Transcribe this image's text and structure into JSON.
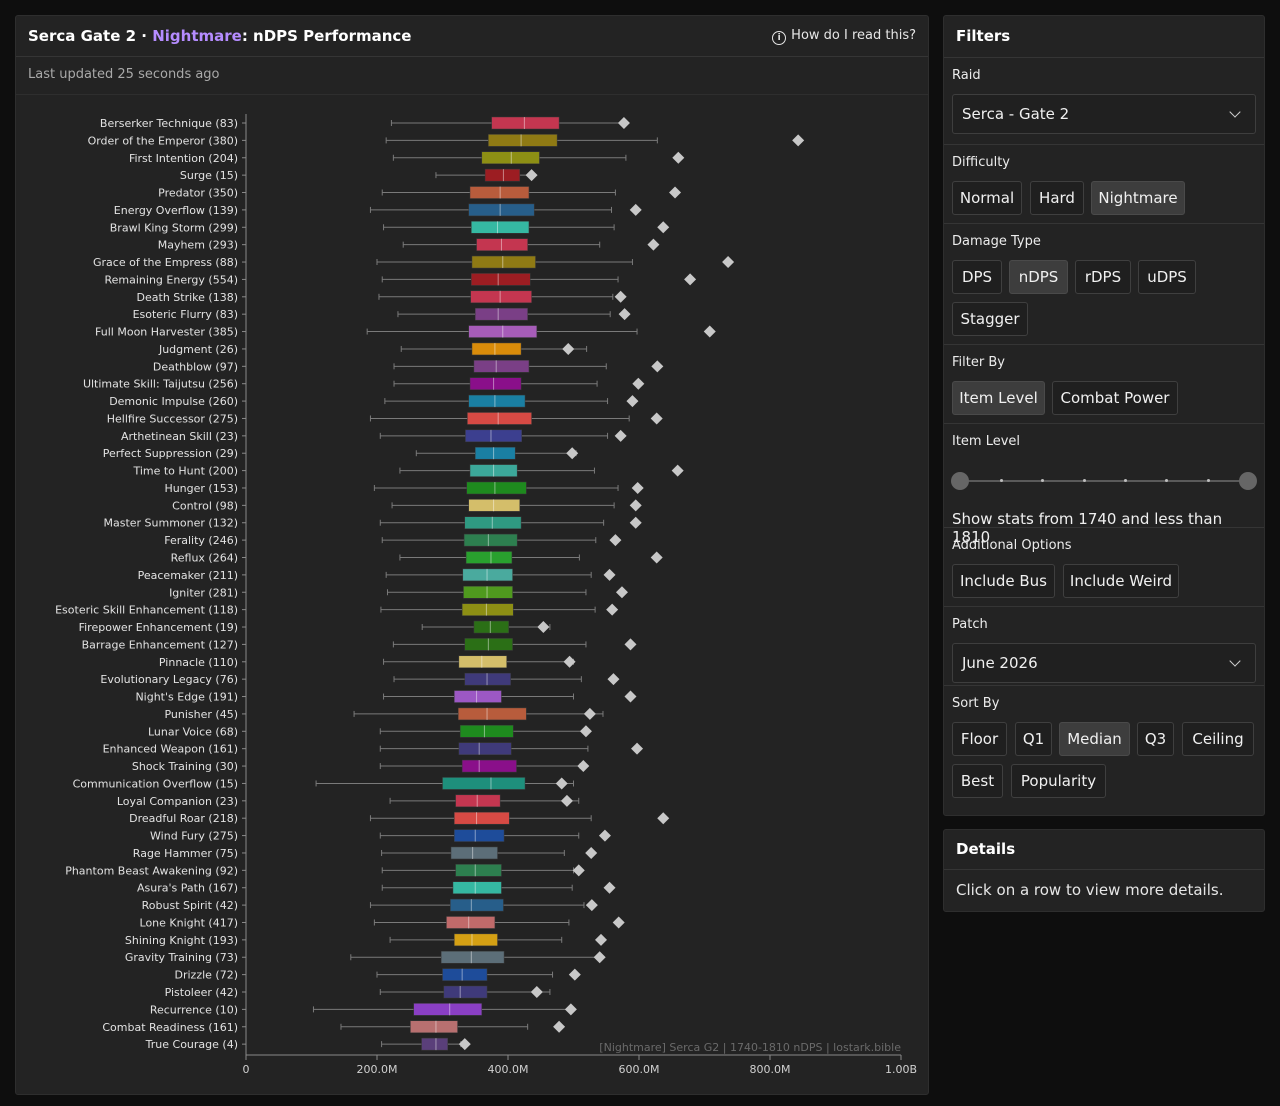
{
  "header": {
    "title_prefix": "Serca Gate 2 · ",
    "title_difficulty": "Nightmare",
    "title_suffix": ": nDPS Performance",
    "help_link": "How do I read this?",
    "updated": "Last updated 25 seconds ago"
  },
  "chart_data": {
    "type": "boxplot",
    "watermark": "[Nightmare] Serca G2 | 1740-1810 nDPS | lostark.bible",
    "x_ticks": [
      "0",
      "200.0M",
      "400.0M",
      "600.0M",
      "800.0M",
      "1.00B"
    ],
    "xlim": [
      0,
      1000
    ],
    "units": "M",
    "grid": false,
    "rows": [
      {
        "label": "Berserker Technique (83)",
        "color": "#c43650",
        "min": 222,
        "q1": 375,
        "median": 425,
        "q3": 478,
        "max": 580,
        "best": 577
      },
      {
        "label": "Order of the Emperor (380)",
        "color": "#8f7a14",
        "min": 214,
        "q1": 370,
        "median": 420,
        "q3": 475,
        "max": 628,
        "best": 843
      },
      {
        "label": "First Intention (204)",
        "color": "#8d8f14",
        "min": 225,
        "q1": 360,
        "median": 405,
        "q3": 448,
        "max": 580,
        "best": 660
      },
      {
        "label": "Surge (15)",
        "color": "#9c1d22",
        "min": 290,
        "q1": 365,
        "median": 393,
        "q3": 418,
        "max": 436,
        "best": 436
      },
      {
        "label": "Predator (350)",
        "color": "#b85c3c",
        "min": 208,
        "q1": 342,
        "median": 388,
        "q3": 432,
        "max": 564,
        "best": 655
      },
      {
        "label": "Energy Overflow (139)",
        "color": "#275e8a",
        "min": 190,
        "q1": 340,
        "median": 388,
        "q3": 440,
        "max": 558,
        "best": 595
      },
      {
        "label": "Brawl King Storm (299)",
        "color": "#35b8a2",
        "min": 210,
        "q1": 344,
        "median": 384,
        "q3": 432,
        "max": 562,
        "best": 637
      },
      {
        "label": "Mayhem (293)",
        "color": "#c43650",
        "min": 240,
        "q1": 352,
        "median": 390,
        "q3": 430,
        "max": 540,
        "best": 622
      },
      {
        "label": "Grace of the Empress (88)",
        "color": "#8f7a14",
        "min": 200,
        "q1": 345,
        "median": 392,
        "q3": 442,
        "max": 590,
        "best": 736
      },
      {
        "label": "Remaining Energy (554)",
        "color": "#9c1d22",
        "min": 208,
        "q1": 344,
        "median": 385,
        "q3": 434,
        "max": 568,
        "best": 678
      },
      {
        "label": "Death Strike (138)",
        "color": "#c43650",
        "min": 203,
        "q1": 343,
        "median": 388,
        "q3": 436,
        "max": 560,
        "best": 572
      },
      {
        "label": "Esoteric Flurry (83)",
        "color": "#7a3f86",
        "min": 232,
        "q1": 350,
        "median": 385,
        "q3": 430,
        "max": 556,
        "best": 578
      },
      {
        "label": "Full Moon Harvester (385)",
        "color": "#a65cb8",
        "min": 185,
        "q1": 340,
        "median": 392,
        "q3": 444,
        "max": 597,
        "best": 708
      },
      {
        "label": "Judgment (26)",
        "color": "#d98c0a",
        "min": 237,
        "q1": 345,
        "median": 380,
        "q3": 420,
        "max": 520,
        "best": 492
      },
      {
        "label": "Deathblow (97)",
        "color": "#7a3f86",
        "min": 226,
        "q1": 348,
        "median": 382,
        "q3": 432,
        "max": 550,
        "best": 628
      },
      {
        "label": "Ultimate Skill: Taijutsu (256)",
        "color": "#8a0f8a",
        "min": 226,
        "q1": 342,
        "median": 378,
        "q3": 420,
        "max": 536,
        "best": 599
      },
      {
        "label": "Demonic Impulse (260)",
        "color": "#1a7fa3",
        "min": 212,
        "q1": 340,
        "median": 380,
        "q3": 426,
        "max": 552,
        "best": 590
      },
      {
        "label": "Hellfire Successor (275)",
        "color": "#d64a44",
        "min": 190,
        "q1": 338,
        "median": 385,
        "q3": 436,
        "max": 585,
        "best": 627
      },
      {
        "label": "Arthetinean Skill (23)",
        "color": "#3c3f8f",
        "min": 205,
        "q1": 335,
        "median": 374,
        "q3": 421,
        "max": 552,
        "best": 572
      },
      {
        "label": "Perfect Suppression (29)",
        "color": "#1a7fa3",
        "min": 260,
        "q1": 350,
        "median": 378,
        "q3": 411,
        "max": 504,
        "best": 498
      },
      {
        "label": "Time to Hunt (200)",
        "color": "#3ca89a",
        "min": 235,
        "q1": 342,
        "median": 378,
        "q3": 414,
        "max": 532,
        "best": 659
      },
      {
        "label": "Hunger (153)",
        "color": "#1e8a1e",
        "min": 196,
        "q1": 337,
        "median": 380,
        "q3": 428,
        "max": 568,
        "best": 598
      },
      {
        "label": "Control (98)",
        "color": "#d4be6a",
        "min": 223,
        "q1": 340,
        "median": 378,
        "q3": 418,
        "max": 562,
        "best": 595
      },
      {
        "label": "Master Summoner (132)",
        "color": "#2f9a82",
        "min": 205,
        "q1": 334,
        "median": 376,
        "q3": 420,
        "max": 546,
        "best": 595
      },
      {
        "label": "Ferality (246)",
        "color": "#2d7f4f",
        "min": 208,
        "q1": 333,
        "median": 370,
        "q3": 414,
        "max": 534,
        "best": 564
      },
      {
        "label": "Reflux (264)",
        "color": "#29a02e",
        "min": 235,
        "q1": 336,
        "median": 374,
        "q3": 406,
        "max": 509,
        "best": 627
      },
      {
        "label": "Peacemaker (211)",
        "color": "#4aaa9e",
        "min": 214,
        "q1": 331,
        "median": 368,
        "q3": 407,
        "max": 527,
        "best": 555
      },
      {
        "label": "Igniter (281)",
        "color": "#4f9a1e",
        "min": 216,
        "q1": 332,
        "median": 368,
        "q3": 407,
        "max": 519,
        "best": 574
      },
      {
        "label": "Esoteric Skill Enhancement (118)",
        "color": "#8d8f14",
        "min": 206,
        "q1": 330,
        "median": 367,
        "q3": 408,
        "max": 533,
        "best": 559
      },
      {
        "label": "Firepower Enhancement (19)",
        "color": "#2b6f16",
        "min": 269,
        "q1": 348,
        "median": 373,
        "q3": 401,
        "max": 464,
        "best": 454
      },
      {
        "label": "Barrage Enhancement (127)",
        "color": "#2b6f16",
        "min": 225,
        "q1": 334,
        "median": 370,
        "q3": 407,
        "max": 519,
        "best": 587
      },
      {
        "label": "Pinnacle (110)",
        "color": "#d4be6a",
        "min": 210,
        "q1": 325,
        "median": 360,
        "q3": 398,
        "max": 500,
        "best": 494
      },
      {
        "label": "Evolutionary Legacy (76)",
        "color": "#3f3a7a",
        "min": 226,
        "q1": 334,
        "median": 368,
        "q3": 404,
        "max": 512,
        "best": 561
      },
      {
        "label": "Night's Edge (191)",
        "color": "#9c58c4",
        "min": 210,
        "q1": 318,
        "median": 352,
        "q3": 390,
        "max": 500,
        "best": 587
      },
      {
        "label": "Punisher (45)",
        "color": "#b85c3c",
        "min": 165,
        "q1": 324,
        "median": 368,
        "q3": 428,
        "max": 545,
        "best": 525
      },
      {
        "label": "Lunar Voice (68)",
        "color": "#1e8a1e",
        "min": 205,
        "q1": 327,
        "median": 364,
        "q3": 408,
        "max": 522,
        "best": 519
      },
      {
        "label": "Enhanced Weapon (161)",
        "color": "#3f3a7a",
        "min": 205,
        "q1": 325,
        "median": 356,
        "q3": 405,
        "max": 522,
        "best": 597
      },
      {
        "label": "Shock Training (30)",
        "color": "#8a0f8a",
        "min": 205,
        "q1": 330,
        "median": 356,
        "q3": 413,
        "max": 510,
        "best": 515
      },
      {
        "label": "Communication Overflow (15)",
        "color": "#1e8f7c",
        "min": 107,
        "q1": 300,
        "median": 374,
        "q3": 426,
        "max": 500,
        "best": 482
      },
      {
        "label": "Loyal Companion (23)",
        "color": "#c43650",
        "min": 220,
        "q1": 320,
        "median": 353,
        "q3": 388,
        "max": 508,
        "best": 490
      },
      {
        "label": "Dreadful Roar (218)",
        "color": "#d64a44",
        "min": 190,
        "q1": 318,
        "median": 352,
        "q3": 402,
        "max": 527,
        "best": 637
      },
      {
        "label": "Wind Fury (275)",
        "color": "#1e4c9a",
        "min": 205,
        "q1": 318,
        "median": 350,
        "q3": 394,
        "max": 508,
        "best": 548
      },
      {
        "label": "Rage Hammer (75)",
        "color": "#5c6e78",
        "min": 207,
        "q1": 313,
        "median": 346,
        "q3": 384,
        "max": 486,
        "best": 527
      },
      {
        "label": "Phantom Beast Awakening (92)",
        "color": "#2d7f4f",
        "min": 208,
        "q1": 320,
        "median": 350,
        "q3": 390,
        "max": 500,
        "best": 508
      },
      {
        "label": "Asura's Path (167)",
        "color": "#35b8a2",
        "min": 208,
        "q1": 316,
        "median": 350,
        "q3": 390,
        "max": 498,
        "best": 555
      },
      {
        "label": "Robust Spirit (42)",
        "color": "#275e8a",
        "min": 190,
        "q1": 312,
        "median": 344,
        "q3": 393,
        "max": 516,
        "best": 528
      },
      {
        "label": "Lone Knight (417)",
        "color": "#c06a6a",
        "min": 196,
        "q1": 306,
        "median": 340,
        "q3": 380,
        "max": 493,
        "best": 569
      },
      {
        "label": "Shining Knight (193)",
        "color": "#d4a014",
        "min": 220,
        "q1": 318,
        "median": 345,
        "q3": 384,
        "max": 482,
        "best": 542
      },
      {
        "label": "Gravity Training (73)",
        "color": "#5c6e78",
        "min": 160,
        "q1": 298,
        "median": 344,
        "q3": 394,
        "max": 540,
        "best": 540
      },
      {
        "label": "Drizzle (72)",
        "color": "#1e4c9a",
        "min": 200,
        "q1": 300,
        "median": 330,
        "q3": 368,
        "max": 468,
        "best": 502
      },
      {
        "label": "Pistoleer (42)",
        "color": "#3f3a7a",
        "min": 205,
        "q1": 302,
        "median": 327,
        "q3": 368,
        "max": 464,
        "best": 444
      },
      {
        "label": "Recurrence (10)",
        "color": "#8a3fc4",
        "min": 103,
        "q1": 256,
        "median": 311,
        "q3": 360,
        "max": 496,
        "best": 496
      },
      {
        "label": "Combat Readiness (161)",
        "color": "#b87070",
        "min": 145,
        "q1": 251,
        "median": 290,
        "q3": 323,
        "max": 430,
        "best": 478
      },
      {
        "label": "True Courage (4)",
        "color": "#5a3f7a",
        "min": 207,
        "q1": 268,
        "median": 290,
        "q3": 308,
        "max": 328,
        "best": 334
      }
    ]
  },
  "filters": {
    "title": "Filters",
    "raid_label": "Raid",
    "raid_value": "Serca - Gate 2",
    "difficulty_label": "Difficulty",
    "difficulty_options": [
      "Normal",
      "Hard",
      "Nightmare"
    ],
    "damage_label": "Damage Type",
    "damage_options": [
      "DPS",
      "nDPS",
      "rDPS",
      "uDPS",
      "Stagger"
    ],
    "filterby_label": "Filter By",
    "filterby_options": [
      "Item Level",
      "Combat Power"
    ],
    "itemlevel_label": "Item Level",
    "itemlevel_text": "Show stats from 1740 and less than 1810",
    "additional_label": "Additional Options",
    "additional_options": [
      "Include Bus",
      "Include Weird"
    ],
    "patch_label": "Patch",
    "patch_value": "June 2026",
    "sortby_label": "Sort By",
    "sortby_options": [
      "Floor",
      "Q1",
      "Median",
      "Q3",
      "Ceiling",
      "Best",
      "Popularity"
    ]
  },
  "details": {
    "title": "Details",
    "text": "Click on a row to view more details."
  }
}
